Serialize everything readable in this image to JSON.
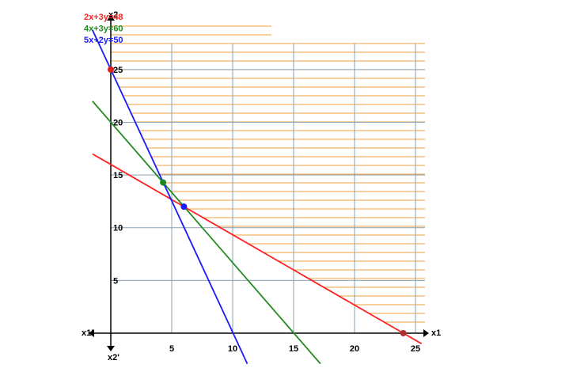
{
  "chart_data": {
    "type": "line",
    "xlim": [
      -2,
      26
    ],
    "ylim": [
      -2.9,
      31
    ],
    "xticks": [
      5,
      10,
      15,
      20,
      25
    ],
    "yticks": [
      5,
      10,
      15,
      20,
      25
    ],
    "grid": true,
    "axis_labels": {
      "x_pos": "x1",
      "x_neg": "x1'",
      "y_pos": "x2",
      "y_neg": "x2'"
    },
    "series": [
      {
        "name": "2x+3y=48",
        "color": "#ff2020",
        "x": [
          -1.5,
          25.5
        ],
        "values": [
          17,
          -1
        ]
      },
      {
        "name": "4x+3y=60",
        "color": "#228b22",
        "x": [
          -1.5,
          17.2
        ],
        "values": [
          22,
          -2.9
        ]
      },
      {
        "name": "5x+2y=50",
        "color": "#1a1aff",
        "x": [
          -1.5,
          11.2
        ],
        "values": [
          28.75,
          -2.9
        ]
      }
    ],
    "points": [
      {
        "color": "#dd2222",
        "x": 0,
        "y": 25
      },
      {
        "color": "#b03030",
        "x": 24,
        "y": 0
      },
      {
        "color": "#1a8a1a",
        "x": 4.29,
        "y": 14.29
      },
      {
        "color": "#1a1aff",
        "x": 6,
        "y": 12
      }
    ]
  }
}
